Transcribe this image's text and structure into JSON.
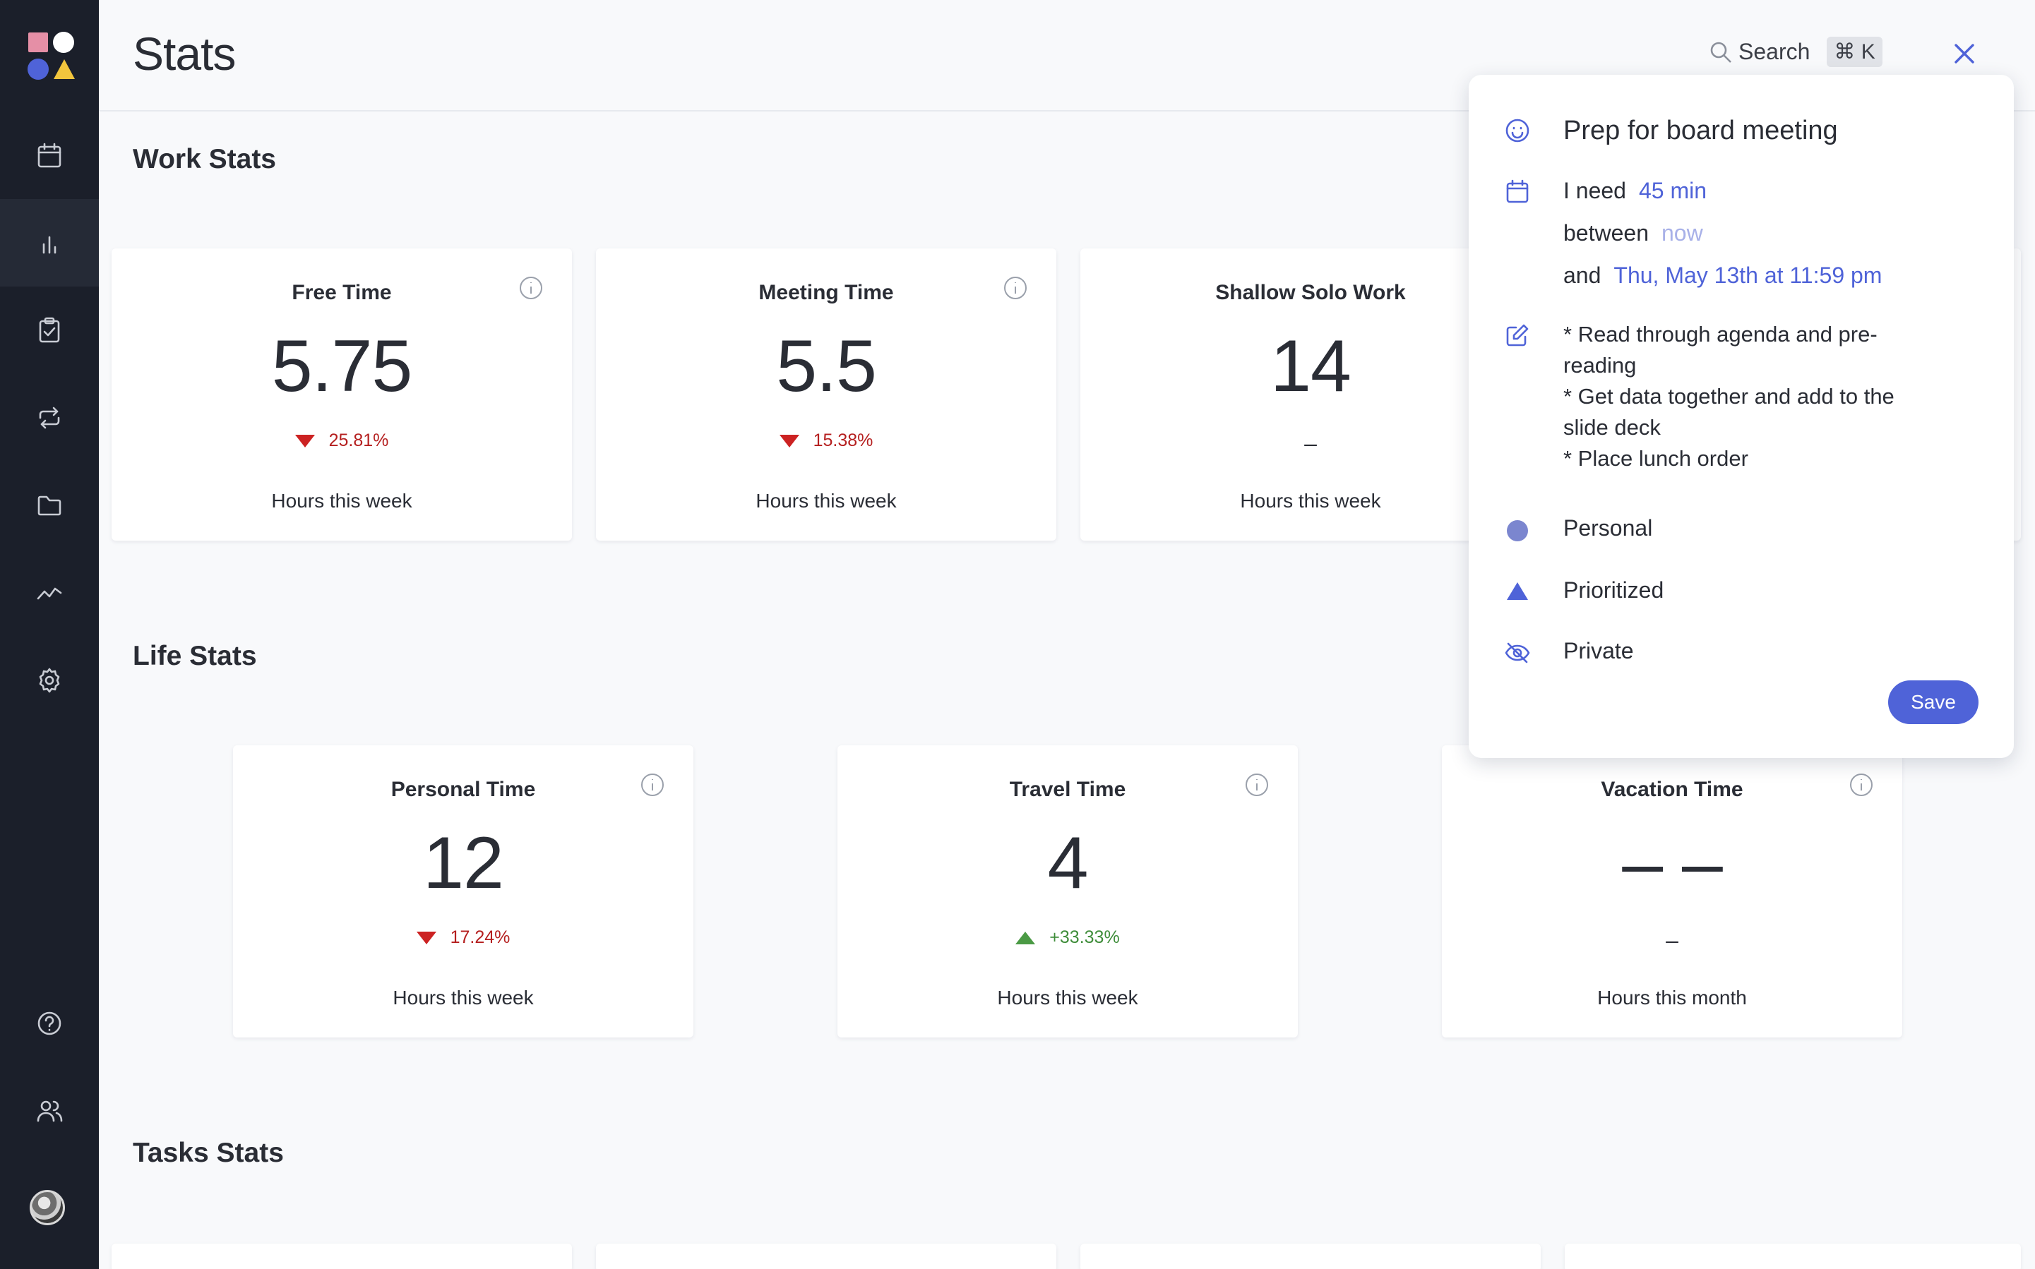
{
  "app": {
    "page_title": "Stats",
    "search": {
      "label": "Search",
      "shortcut": "⌘ K"
    }
  },
  "sidebar": {
    "items": [
      {
        "name": "calendar",
        "icon": "calendar-icon"
      },
      {
        "name": "stats",
        "icon": "bar-chart-icon",
        "active": true
      },
      {
        "name": "tasks",
        "icon": "clipboard-check-icon"
      },
      {
        "name": "habits",
        "icon": "repeat-icon"
      },
      {
        "name": "folder",
        "icon": "folder-icon"
      },
      {
        "name": "analytics",
        "icon": "trend-icon"
      },
      {
        "name": "settings",
        "icon": "gear-icon"
      }
    ],
    "bottom": [
      {
        "name": "help",
        "icon": "help-icon"
      },
      {
        "name": "team",
        "icon": "people-icon"
      }
    ]
  },
  "sections": {
    "work": {
      "title": "Work Stats",
      "cards": [
        {
          "title": "Free Time",
          "value": "5.75",
          "delta": "25.81%",
          "trend": "down",
          "footer": "Hours this week"
        },
        {
          "title": "Meeting Time",
          "value": "5.5",
          "delta": "15.38%",
          "trend": "down",
          "footer": "Hours this week"
        },
        {
          "title": "Shallow Solo Work",
          "value": "14",
          "delta": "–",
          "trend": "neutral",
          "footer": "Hours this week"
        }
      ]
    },
    "life": {
      "title": "Life Stats",
      "cards": [
        {
          "title": "Personal Time",
          "value": "12",
          "delta": "17.24%",
          "trend": "down",
          "footer": "Hours this week"
        },
        {
          "title": "Travel Time",
          "value": "4",
          "delta": "+33.33%",
          "trend": "up",
          "footer": "Hours this week"
        },
        {
          "title": "Vacation Time",
          "value": "– –",
          "delta": "–",
          "trend": "neutral",
          "footer": "Hours this month"
        }
      ]
    },
    "tasks": {
      "title": "Tasks Stats"
    }
  },
  "popup": {
    "title": "Prep for board meeting",
    "need_label": "I need",
    "duration": "45 min",
    "between_label": "between",
    "start": "now",
    "and_label": "and",
    "end": "Thu, May 13th at 11:59 pm",
    "notes_lines": [
      "* Read through agenda and pre-",
      "reading",
      "* Get data together and add to the",
      "slide deck",
      "* Place lunch order"
    ],
    "category": "Personal",
    "priority": "Prioritized",
    "visibility": "Private",
    "save_label": "Save",
    "colors": {
      "accent": "#4f63d8",
      "category_dot": "#7b86cf"
    }
  }
}
